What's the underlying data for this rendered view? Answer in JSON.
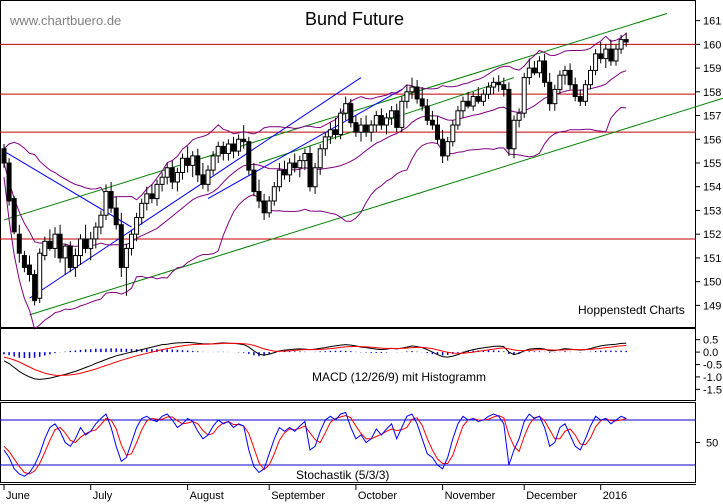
{
  "header": {
    "watermark": "www.chartbuero.de",
    "title": "Bund Future",
    "credit": "Hoppenstedt Charts"
  },
  "panels": {
    "macd_label": "MACD (12/26/9) mit Histogramm",
    "stoch_label": "Stochastik (5/3/3)"
  },
  "colors": {
    "candle": "#000000",
    "bollinger": "#800080",
    "trend_green": "#008000",
    "trend_blue": "#0000ff",
    "support_red": "#c00000",
    "macd_line": "#000000",
    "macd_signal": "#ff0000",
    "macd_hist": "#0000cc",
    "stoch_k": "#0000ff",
    "stoch_d": "#ff0000"
  },
  "chart_data": {
    "type": "candlestick",
    "x_months": [
      "June",
      "July",
      "August",
      "September",
      "October",
      "November",
      "December",
      "2016"
    ],
    "y_ticks": [
      149,
      150,
      151,
      152,
      153,
      154,
      155,
      156,
      157,
      158,
      159,
      160,
      161
    ],
    "ylim": [
      148.3,
      161.7
    ],
    "horizontal_levels": [
      151.8,
      156.3,
      157.9,
      160.0
    ],
    "trendlines_green": [
      {
        "from": [
          0,
          152.6
        ],
        "to": [
          130,
          161.3
        ]
      },
      {
        "from": [
          5,
          148.6
        ],
        "to": [
          148,
          158.2
        ]
      },
      {
        "from": [
          50,
          155.0
        ],
        "to": [
          100,
          158.6
        ]
      }
    ],
    "trendlines_blue": [
      {
        "from": [
          0,
          155.5
        ],
        "to": [
          25,
          152.3
        ]
      },
      {
        "from": [
          5,
          149.3
        ],
        "to": [
          70,
          158.6
        ]
      },
      {
        "from": [
          40,
          153.5
        ],
        "to": [
          78,
          158.1
        ]
      }
    ],
    "candles": [
      [
        0,
        155.6,
        155.8,
        154.8,
        155.0
      ],
      [
        1,
        155.0,
        155.2,
        153.2,
        153.4
      ],
      [
        2,
        153.5,
        153.6,
        152.0,
        152.1
      ],
      [
        3,
        152.0,
        152.4,
        150.8,
        151.2
      ],
      [
        4,
        151.1,
        151.3,
        150.4,
        150.6
      ],
      [
        5,
        150.7,
        151.1,
        150.0,
        150.3
      ],
      [
        6,
        150.3,
        150.5,
        149.0,
        149.2
      ],
      [
        7,
        149.3,
        151.4,
        149.1,
        151.2
      ],
      [
        8,
        151.1,
        151.9,
        150.9,
        151.7
      ],
      [
        9,
        151.7,
        152.2,
        151.3,
        151.4
      ],
      [
        10,
        151.4,
        152.3,
        151.0,
        152.0
      ],
      [
        11,
        152.0,
        152.4,
        150.8,
        151.0
      ],
      [
        12,
        151.0,
        151.6,
        150.3,
        151.5
      ],
      [
        13,
        151.5,
        151.7,
        150.4,
        150.6
      ],
      [
        14,
        150.6,
        151.4,
        150.2,
        151.1
      ],
      [
        15,
        151.1,
        152.0,
        150.7,
        151.8
      ],
      [
        16,
        151.8,
        152.4,
        151.2,
        151.4
      ],
      [
        17,
        151.4,
        152.1,
        150.9,
        151.8
      ],
      [
        18,
        151.8,
        152.5,
        151.4,
        152.3
      ],
      [
        19,
        152.3,
        153.0,
        152.0,
        152.8
      ],
      [
        20,
        152.8,
        154.1,
        152.6,
        153.8
      ],
      [
        21,
        153.8,
        154.2,
        152.9,
        153.1
      ],
      [
        22,
        153.1,
        153.6,
        152.2,
        152.4
      ],
      [
        23,
        152.4,
        152.9,
        150.2,
        150.6
      ],
      [
        24,
        150.6,
        151.6,
        149.4,
        151.4
      ],
      [
        25,
        151.4,
        152.2,
        151.1,
        152.0
      ],
      [
        26,
        152.0,
        152.9,
        151.7,
        152.7
      ],
      [
        27,
        152.7,
        153.5,
        152.4,
        153.3
      ],
      [
        28,
        153.3,
        154.0,
        153.0,
        153.7
      ],
      [
        29,
        153.7,
        154.1,
        153.3,
        153.5
      ],
      [
        30,
        153.5,
        154.3,
        153.2,
        154.1
      ],
      [
        31,
        154.1,
        154.6,
        153.8,
        154.4
      ],
      [
        32,
        154.4,
        155.0,
        154.1,
        154.8
      ],
      [
        33,
        154.8,
        155.1,
        153.9,
        154.2
      ],
      [
        34,
        154.2,
        154.8,
        153.8,
        154.6
      ],
      [
        35,
        154.6,
        155.4,
        154.3,
        155.2
      ],
      [
        36,
        155.2,
        155.7,
        154.6,
        154.9
      ],
      [
        37,
        154.9,
        155.5,
        154.4,
        155.3
      ],
      [
        38,
        155.3,
        155.6,
        154.2,
        154.5
      ],
      [
        39,
        154.5,
        155.0,
        153.9,
        154.1
      ],
      [
        40,
        154.1,
        154.9,
        153.8,
        154.7
      ],
      [
        41,
        154.7,
        155.5,
        154.5,
        155.3
      ],
      [
        42,
        155.3,
        155.9,
        155.0,
        155.7
      ],
      [
        43,
        155.7,
        155.9,
        155.1,
        155.4
      ],
      [
        44,
        155.4,
        156.0,
        155.1,
        155.8
      ],
      [
        45,
        155.8,
        156.1,
        155.2,
        155.5
      ],
      [
        46,
        155.5,
        156.2,
        155.3,
        156.0
      ],
      [
        47,
        156.0,
        156.6,
        155.6,
        155.9
      ],
      [
        48,
        155.9,
        156.1,
        154.5,
        154.7
      ],
      [
        49,
        154.7,
        155.0,
        153.6,
        153.8
      ],
      [
        50,
        153.8,
        154.3,
        153.1,
        153.4
      ],
      [
        51,
        153.4,
        153.7,
        152.6,
        152.9
      ],
      [
        52,
        152.9,
        153.6,
        152.7,
        153.4
      ],
      [
        53,
        153.4,
        154.2,
        153.2,
        154.0
      ],
      [
        54,
        154.0,
        155.0,
        153.8,
        154.7
      ],
      [
        55,
        154.7,
        155.1,
        154.3,
        154.5
      ],
      [
        56,
        154.5,
        155.2,
        154.2,
        155.0
      ],
      [
        57,
        155.0,
        155.4,
        154.6,
        154.8
      ],
      [
        58,
        154.8,
        155.3,
        154.4,
        155.1
      ],
      [
        59,
        155.1,
        155.6,
        154.7,
        155.4
      ],
      [
        60,
        155.4,
        155.7,
        153.8,
        154.0
      ],
      [
        61,
        154.0,
        155.0,
        153.7,
        154.8
      ],
      [
        62,
        154.8,
        155.8,
        154.5,
        155.6
      ],
      [
        63,
        155.6,
        156.3,
        155.3,
        156.1
      ],
      [
        64,
        156.1,
        156.7,
        155.8,
        156.4
      ],
      [
        65,
        156.4,
        156.9,
        156.0,
        156.2
      ],
      [
        66,
        156.2,
        157.3,
        156.0,
        157.1
      ],
      [
        67,
        157.1,
        157.8,
        156.8,
        157.5
      ],
      [
        68,
        157.5,
        157.7,
        156.5,
        156.7
      ],
      [
        69,
        156.7,
        157.0,
        156.1,
        156.3
      ],
      [
        70,
        156.3,
        156.9,
        155.9,
        156.6
      ],
      [
        71,
        156.6,
        157.0,
        156.1,
        156.3
      ],
      [
        72,
        156.3,
        156.8,
        155.9,
        156.6
      ],
      [
        73,
        156.6,
        157.2,
        156.3,
        157.0
      ],
      [
        74,
        157.0,
        157.3,
        156.4,
        156.6
      ],
      [
        75,
        156.6,
        157.1,
        156.2,
        156.9
      ],
      [
        76,
        156.9,
        157.4,
        156.6,
        157.2
      ],
      [
        77,
        157.2,
        157.5,
        156.3,
        156.5
      ],
      [
        78,
        156.5,
        157.8,
        156.3,
        157.6
      ],
      [
        79,
        157.6,
        158.3,
        157.3,
        158.0
      ],
      [
        80,
        158.0,
        158.6,
        157.7,
        158.2
      ],
      [
        81,
        158.2,
        158.5,
        157.5,
        157.7
      ],
      [
        82,
        157.7,
        158.2,
        157.2,
        157.4
      ],
      [
        83,
        157.4,
        157.7,
        156.6,
        156.8
      ],
      [
        84,
        156.8,
        157.2,
        156.4,
        156.6
      ],
      [
        85,
        156.6,
        157.0,
        155.8,
        156.0
      ],
      [
        86,
        156.0,
        156.4,
        155.0,
        155.3
      ],
      [
        87,
        155.3,
        156.1,
        155.1,
        155.9
      ],
      [
        88,
        155.9,
        156.8,
        155.7,
        156.6
      ],
      [
        89,
        156.6,
        157.4,
        156.4,
        157.2
      ],
      [
        90,
        157.2,
        157.8,
        156.9,
        157.6
      ],
      [
        91,
        157.6,
        158.0,
        157.3,
        157.4
      ],
      [
        92,
        157.4,
        158.0,
        157.2,
        157.8
      ],
      [
        93,
        157.8,
        158.2,
        157.5,
        157.6
      ],
      [
        94,
        157.6,
        158.1,
        157.4,
        157.9
      ],
      [
        95,
        157.9,
        158.4,
        157.7,
        158.2
      ],
      [
        96,
        158.2,
        158.6,
        157.9,
        158.4
      ],
      [
        97,
        158.4,
        158.7,
        158.0,
        158.3
      ],
      [
        98,
        158.3,
        158.6,
        157.8,
        158.1
      ],
      [
        99,
        158.1,
        158.4,
        155.3,
        155.6
      ],
      [
        100,
        155.6,
        157.0,
        155.2,
        156.8
      ],
      [
        101,
        156.8,
        157.3,
        156.5,
        157.1
      ],
      [
        102,
        157.1,
        158.8,
        156.9,
        158.6
      ],
      [
        103,
        158.6,
        159.4,
        158.3,
        159.0
      ],
      [
        104,
        159.0,
        159.3,
        158.7,
        158.8
      ],
      [
        105,
        158.8,
        159.5,
        158.6,
        159.3
      ],
      [
        106,
        159.3,
        159.6,
        158.2,
        158.4
      ],
      [
        107,
        158.4,
        158.8,
        157.2,
        157.5
      ],
      [
        108,
        157.5,
        158.3,
        157.2,
        158.1
      ],
      [
        109,
        158.1,
        158.9,
        157.9,
        158.7
      ],
      [
        110,
        158.7,
        159.1,
        158.3,
        158.9
      ],
      [
        111,
        158.9,
        159.2,
        158.1,
        158.3
      ],
      [
        112,
        158.3,
        158.6,
        157.6,
        157.8
      ],
      [
        113,
        157.8,
        158.1,
        157.4,
        157.6
      ],
      [
        114,
        157.6,
        158.5,
        157.4,
        158.3
      ],
      [
        115,
        158.3,
        159.1,
        158.1,
        158.9
      ],
      [
        116,
        158.9,
        159.8,
        158.7,
        159.6
      ],
      [
        117,
        159.6,
        160.1,
        159.2,
        159.4
      ],
      [
        118,
        159.4,
        160.0,
        159.0,
        159.8
      ],
      [
        119,
        159.8,
        160.2,
        159.1,
        159.3
      ],
      [
        120,
        159.3,
        160.0,
        159.1,
        159.8
      ],
      [
        121,
        159.8,
        160.4,
        159.6,
        160.2
      ],
      [
        122,
        160.2,
        160.5,
        159.9,
        160.1
      ]
    ],
    "macd_ticks": [
      0.5,
      0.0,
      -0.5,
      -1.0,
      -1.5
    ],
    "macd_ylim": [
      -1.85,
      0.85
    ],
    "macd": [
      -0.35,
      -0.46,
      -0.62,
      -0.78,
      -0.9,
      -1.0,
      -1.08,
      -1.1,
      -1.08,
      -1.05,
      -1.0,
      -0.95,
      -0.9,
      -0.84,
      -0.78,
      -0.7,
      -0.62,
      -0.55,
      -0.45,
      -0.38,
      -0.3,
      -0.22,
      -0.15,
      -0.1,
      -0.05,
      0.0,
      0.05,
      0.1,
      0.15,
      0.2,
      0.25,
      0.3,
      0.32,
      0.35,
      0.37,
      0.38,
      0.39,
      0.38,
      0.36,
      0.34,
      0.33,
      0.34,
      0.36,
      0.37,
      0.36,
      0.35,
      0.33,
      0.3,
      0.2,
      0.05,
      -0.08,
      -0.12,
      -0.08,
      -0.02,
      0.05,
      0.08,
      0.1,
      0.12,
      0.13,
      0.12,
      0.1,
      0.12,
      0.15,
      0.18,
      0.22,
      0.25,
      0.28,
      0.3,
      0.28,
      0.25,
      0.2,
      0.18,
      0.15,
      0.12,
      0.1,
      0.12,
      0.15,
      0.13,
      0.16,
      0.2,
      0.25,
      0.22,
      0.18,
      0.1,
      0.0,
      -0.1,
      -0.18,
      -0.2,
      -0.16,
      -0.1,
      -0.02,
      0.05,
      0.1,
      0.14,
      0.17,
      0.2,
      0.23,
      0.24,
      0.22,
      0.0,
      -0.1,
      -0.05,
      0.05,
      0.12,
      0.14,
      0.15,
      0.12,
      0.05,
      0.06,
      0.1,
      0.14,
      0.12,
      0.1,
      0.08,
      0.1,
      0.14,
      0.2,
      0.25,
      0.28,
      0.3,
      0.32,
      0.35,
      0.36
    ],
    "macd_signal": [
      -0.2,
      -0.25,
      -0.32,
      -0.4,
      -0.5,
      -0.6,
      -0.7,
      -0.78,
      -0.85,
      -0.9,
      -0.93,
      -0.94,
      -0.93,
      -0.92,
      -0.89,
      -0.85,
      -0.8,
      -0.74,
      -0.68,
      -0.61,
      -0.54,
      -0.47,
      -0.4,
      -0.33,
      -0.27,
      -0.21,
      -0.15,
      -0.1,
      -0.05,
      0.0,
      0.05,
      0.1,
      0.14,
      0.18,
      0.22,
      0.25,
      0.28,
      0.3,
      0.31,
      0.32,
      0.32,
      0.33,
      0.34,
      0.35,
      0.35,
      0.35,
      0.35,
      0.34,
      0.32,
      0.27,
      0.2,
      0.13,
      0.08,
      0.04,
      0.03,
      0.04,
      0.05,
      0.07,
      0.09,
      0.1,
      0.1,
      0.1,
      0.11,
      0.12,
      0.14,
      0.16,
      0.19,
      0.21,
      0.22,
      0.23,
      0.22,
      0.21,
      0.2,
      0.18,
      0.16,
      0.15,
      0.15,
      0.14,
      0.15,
      0.16,
      0.18,
      0.19,
      0.19,
      0.17,
      0.14,
      0.09,
      0.04,
      -0.01,
      -0.04,
      -0.05,
      -0.05,
      -0.03,
      0.0,
      0.03,
      0.06,
      0.09,
      0.12,
      0.15,
      0.17,
      0.13,
      0.09,
      0.06,
      0.06,
      0.07,
      0.09,
      0.1,
      0.1,
      0.09,
      0.08,
      0.08,
      0.09,
      0.1,
      0.1,
      0.1,
      0.1,
      0.11,
      0.13,
      0.15,
      0.18,
      0.2,
      0.23,
      0.25,
      0.27
    ],
    "stoch_ticks": [
      50
    ],
    "stoch_ylim": [
      0,
      100
    ],
    "stoch_levels": [
      20,
      80
    ],
    "stoch_k": [
      40,
      30,
      15,
      8,
      5,
      10,
      20,
      35,
      55,
      70,
      75,
      65,
      50,
      45,
      55,
      70,
      60,
      65,
      75,
      82,
      88,
      70,
      45,
      25,
      30,
      50,
      70,
      82,
      85,
      80,
      78,
      85,
      88,
      80,
      70,
      75,
      82,
      78,
      65,
      55,
      60,
      72,
      80,
      75,
      78,
      70,
      75,
      72,
      40,
      18,
      10,
      15,
      35,
      55,
      70,
      65,
      70,
      65,
      72,
      78,
      40,
      45,
      65,
      80,
      85,
      80,
      88,
      90,
      70,
      55,
      60,
      50,
      55,
      68,
      60,
      68,
      75,
      55,
      70,
      85,
      88,
      75,
      55,
      35,
      30,
      20,
      15,
      30,
      55,
      75,
      85,
      80,
      82,
      78,
      80,
      85,
      88,
      85,
      75,
      20,
      40,
      55,
      78,
      88,
      82,
      85,
      70,
      45,
      50,
      70,
      75,
      60,
      45,
      40,
      55,
      72,
      85,
      80,
      82,
      75,
      80,
      85,
      82
    ],
    "stoch_d": [
      45,
      38,
      28,
      18,
      10,
      8,
      12,
      22,
      37,
      53,
      67,
      70,
      63,
      53,
      50,
      57,
      62,
      65,
      67,
      74,
      82,
      80,
      68,
      47,
      33,
      35,
      50,
      67,
      79,
      82,
      81,
      81,
      84,
      84,
      79,
      75,
      76,
      78,
      75,
      66,
      60,
      62,
      71,
      76,
      78,
      74,
      74,
      72,
      62,
      43,
      23,
      14,
      20,
      35,
      53,
      63,
      68,
      67,
      69,
      72,
      63,
      54,
      50,
      63,
      77,
      82,
      84,
      86,
      83,
      72,
      62,
      55,
      55,
      58,
      61,
      65,
      68,
      66,
      67,
      70,
      81,
      83,
      73,
      55,
      40,
      28,
      22,
      22,
      33,
      53,
      72,
      80,
      82,
      80,
      80,
      81,
      84,
      86,
      83,
      60,
      45,
      38,
      58,
      74,
      83,
      85,
      79,
      67,
      55,
      55,
      65,
      68,
      60,
      48,
      47,
      56,
      71,
      79,
      82,
      79,
      79,
      80,
      82
    ]
  }
}
